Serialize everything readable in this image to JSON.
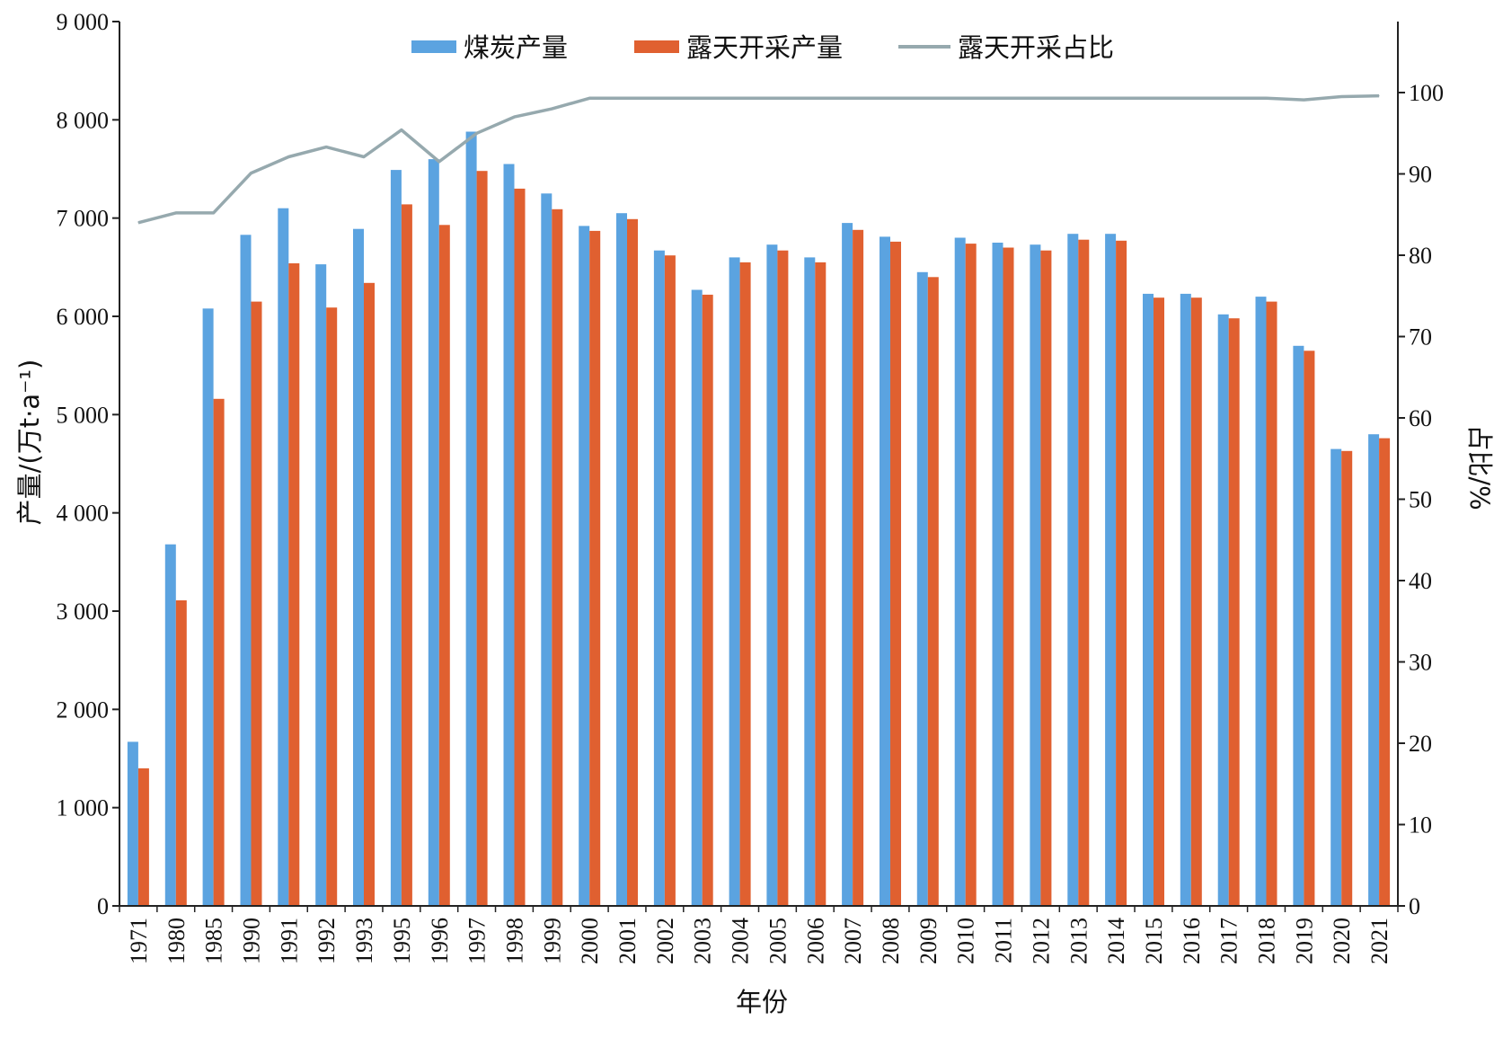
{
  "chart_data": {
    "type": "bar",
    "categories": [
      "1971",
      "1980",
      "1985",
      "1990",
      "1991",
      "1992",
      "1993",
      "1995",
      "1996",
      "1997",
      "1998",
      "1999",
      "2000",
      "2001",
      "2002",
      "2003",
      "2004",
      "2005",
      "2006",
      "2007",
      "2008",
      "2009",
      "2010",
      "2011",
      "2012",
      "2013",
      "2014",
      "2015",
      "2016",
      "2017",
      "2018",
      "2019",
      "2020",
      "2021"
    ],
    "series": [
      {
        "name": "煤炭产量",
        "kind": "bar",
        "axis": "left",
        "color": "#5BA3E0",
        "values": [
          1670,
          3680,
          6080,
          6830,
          7100,
          6530,
          6890,
          7490,
          7600,
          7880,
          7550,
          7250,
          6920,
          7050,
          6670,
          6270,
          6600,
          6730,
          6600,
          6950,
          6810,
          6450,
          6800,
          6750,
          6730,
          6840,
          6840,
          6230,
          6230,
          6020,
          6200,
          5700,
          4650,
          4800
        ]
      },
      {
        "name": "露天开采产量",
        "kind": "bar",
        "axis": "left",
        "color": "#E06030",
        "values": [
          1400,
          3110,
          5160,
          6150,
          6540,
          6090,
          6340,
          7140,
          6930,
          7480,
          7300,
          7090,
          6870,
          6990,
          6620,
          6220,
          6550,
          6670,
          6550,
          6880,
          6760,
          6400,
          6740,
          6700,
          6670,
          6780,
          6770,
          6190,
          6190,
          5980,
          6150,
          5650,
          4630,
          4760
        ]
      },
      {
        "name": "露天开采占比",
        "kind": "line",
        "axis": "right",
        "color": "#96A9AE",
        "values": [
          84,
          85.2,
          85.2,
          90.1,
          92.1,
          93.3,
          92.1,
          95.4,
          91.5,
          95,
          97,
          98,
          99.3,
          99.3,
          99.3,
          99.3,
          99.3,
          99.3,
          99.3,
          99.3,
          99.3,
          99.3,
          99.3,
          99.3,
          99.3,
          99.3,
          99.3,
          99.3,
          99.3,
          99.3,
          99.3,
          99.1,
          99.5,
          99.6
        ]
      }
    ],
    "xlabel": "年份",
    "ylabel": "产量/(万t·a⁻¹)",
    "y2label": "占比/%",
    "ylim": [
      0,
      9000
    ],
    "y2lim": [
      0,
      100
    ],
    "yticks": [
      "0",
      "1 000",
      "2 000",
      "3 000",
      "4 000",
      "5 000",
      "6 000",
      "7 000",
      "8 000",
      "9 000"
    ],
    "y2ticks": [
      "0",
      "10",
      "20",
      "30",
      "40",
      "50",
      "60",
      "70",
      "80",
      "90",
      "100"
    ],
    "grid": false,
    "legend_position": "top-center"
  }
}
